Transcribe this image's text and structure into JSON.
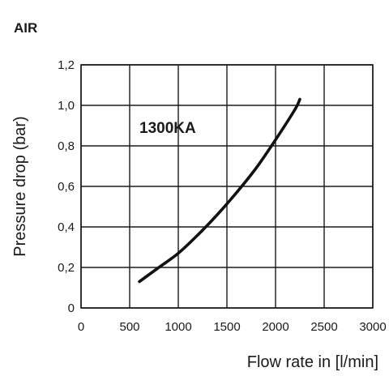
{
  "chart_data": {
    "type": "line",
    "title": "AIR",
    "xlabel": "Flow rate in [l/min]",
    "ylabel": "Pressure drop (bar)",
    "xlim": [
      0,
      3000
    ],
    "ylim": [
      0,
      1.2
    ],
    "x_ticks": [
      0,
      500,
      1000,
      1500,
      2000,
      2500,
      3000
    ],
    "x_tick_labels": [
      "0",
      "500",
      "1000",
      "1500",
      "2000",
      "2500",
      "3000"
    ],
    "y_ticks": [
      0,
      0.2,
      0.4,
      0.6,
      0.8,
      1.0,
      1.2
    ],
    "y_tick_labels": [
      "0",
      "0,2",
      "0,4",
      "0,6",
      "0,8",
      "1,0",
      "1,2"
    ],
    "grid": true,
    "annotation": "1300KA",
    "series": [
      {
        "name": "1300KA",
        "x": [
          600,
          800,
          1000,
          1200,
          1400,
          1600,
          1800,
          2000,
          2200,
          2250
        ],
        "y": [
          0.13,
          0.2,
          0.27,
          0.36,
          0.46,
          0.57,
          0.69,
          0.83,
          0.98,
          1.03
        ]
      }
    ]
  }
}
